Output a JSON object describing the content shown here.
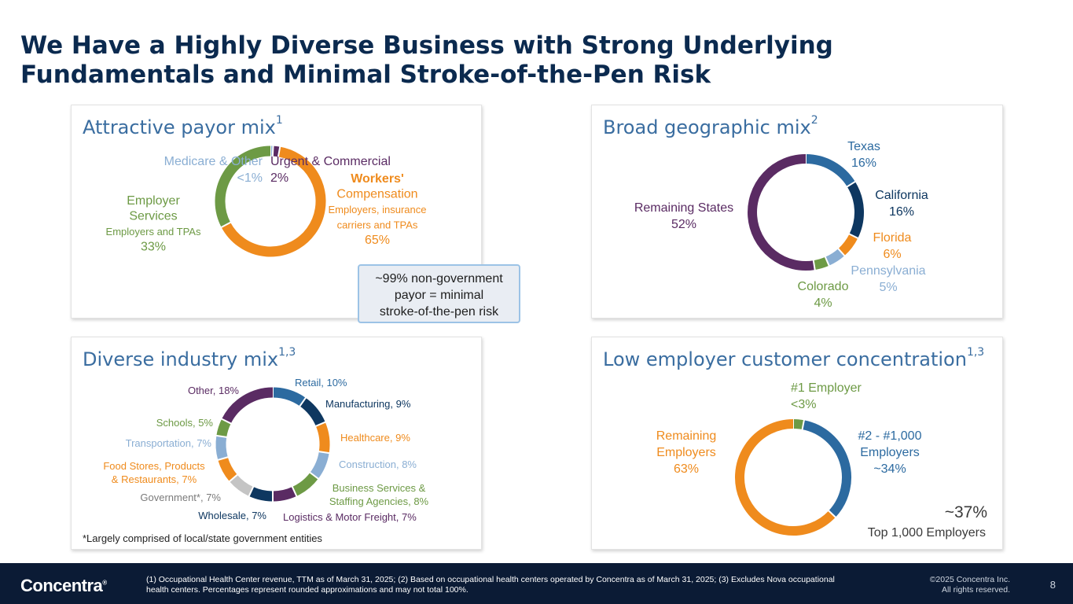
{
  "title": "We Have a Highly Diverse Business with Strong Underlying Fundamentals and Minimal Stroke-of-the-Pen Risk",
  "panels": {
    "payor": {
      "title": "Attractive payor mix",
      "sup": "1"
    },
    "geo": {
      "title": "Broad geographic mix",
      "sup": "2"
    },
    "industry": {
      "title": "Diverse industry mix",
      "sup": "1,3"
    },
    "employer": {
      "title": "Low employer customer concentration",
      "sup": "1,3"
    }
  },
  "callout": {
    "lines": [
      "~99% non-government",
      "payor = minimal",
      "stroke-of-the-pen risk"
    ]
  },
  "industry_footnote": "*Largely comprised of local/state government entities",
  "employer_summary": {
    "value": "~37%",
    "label": "Top 1,000 Employers"
  },
  "colors": {
    "navy": "#0b2a4f",
    "blue": "#2c6aa0",
    "dark_navy": "#0e3760",
    "orange": "#ef8b1d",
    "green": "#6d9a45",
    "light_blue": "#8aaed3",
    "purple": "#5a2b63",
    "gray": "#c4c4c4",
    "footer": "#0b1b35"
  },
  "chart_data": [
    {
      "type": "pie",
      "name": "payor",
      "slices": [
        {
          "label": "Medicare & Other",
          "value": 0.8,
          "display": "<1%",
          "color": "#8aaed3"
        },
        {
          "label": "Urgent & Commercial",
          "value": 2,
          "display": "2%",
          "color": "#5a2b63"
        },
        {
          "label": "Workers' Compensation",
          "sublabel": "Employers, insurance carriers and TPAs",
          "value": 65,
          "display": "65%",
          "color": "#ef8b1d"
        },
        {
          "label": "Employer Services",
          "sublabel": "Employers and TPAs",
          "value": 33,
          "display": "33%",
          "color": "#6d9a45"
        }
      ]
    },
    {
      "type": "pie",
      "name": "geography",
      "slices": [
        {
          "label": "Texas",
          "value": 16,
          "display": "16%",
          "color": "#2c6aa0"
        },
        {
          "label": "California",
          "value": 16,
          "display": "16%",
          "color": "#0e3760"
        },
        {
          "label": "Florida",
          "value": 6,
          "display": "6%",
          "color": "#ef8b1d"
        },
        {
          "label": "Pennsylvania",
          "value": 5,
          "display": "5%",
          "color": "#8aaed3"
        },
        {
          "label": "Colorado",
          "value": 4,
          "display": "4%",
          "color": "#6d9a45"
        },
        {
          "label": "Remaining States",
          "value": 52,
          "display": "52%",
          "color": "#5a2b63"
        }
      ]
    },
    {
      "type": "pie",
      "name": "industry",
      "slices": [
        {
          "label": "Retail, 10%",
          "value": 10,
          "color": "#2c6aa0"
        },
        {
          "label": "Manufacturing, 9%",
          "value": 9,
          "color": "#0e3760"
        },
        {
          "label": "Healthcare, 9%",
          "value": 9,
          "color": "#ef8b1d"
        },
        {
          "label": "Construction, 8%",
          "value": 8,
          "color": "#8aaed3"
        },
        {
          "label": "Business Services & Staffing Agencies, 8%",
          "lines": [
            "Business Services &",
            "Staffing Agencies, 8%"
          ],
          "value": 8,
          "color": "#6d9a45"
        },
        {
          "label": "Logistics & Motor Freight, 7%",
          "value": 7,
          "color": "#5a2b63"
        },
        {
          "label": "Wholesale, 7%",
          "value": 7,
          "color": "#0e3760"
        },
        {
          "label": "Government*, 7%",
          "value": 7,
          "color": "#c4c4c4"
        },
        {
          "label": "Food Stores, Products & Restaurants, 7%",
          "lines": [
            "Food Stores, Products",
            "& Restaurants, 7%"
          ],
          "value": 7,
          "color": "#ef8b1d"
        },
        {
          "label": "Transportation, 7%",
          "value": 7,
          "color": "#8aaed3"
        },
        {
          "label": "Schools, 5%",
          "value": 5,
          "color": "#6d9a45"
        },
        {
          "label": "Other, 18%",
          "value": 18,
          "color": "#5a2b63"
        }
      ]
    },
    {
      "type": "pie",
      "name": "employer",
      "slices": [
        {
          "label": "#1 Employer",
          "value": 3,
          "display": "<3%",
          "color": "#6d9a45"
        },
        {
          "label": "#2 - #1,000 Employers",
          "lines": [
            "#2 - #1,000",
            "Employers"
          ],
          "value": 34,
          "display": "~34%",
          "color": "#2c6aa0"
        },
        {
          "label": "Remaining Employers",
          "lines": [
            "Remaining",
            "Employers"
          ],
          "value": 63,
          "display": "63%",
          "color": "#ef8b1d"
        }
      ]
    }
  ],
  "footer": {
    "logo": "Concentra",
    "logo_mark": "®",
    "note_lines": [
      "(1) Occupational Health Center revenue, TTM as of March 31, 2025; (2) Based on occupational health centers operated by Concentra as of March 31, 2025; (3) Excludes Nova occupational",
      "health centers. Percentages represent rounded approximations and may not total 100%."
    ],
    "copyright_lines": [
      "©2025 Concentra Inc.",
      "All rights reserved."
    ],
    "page": "8"
  }
}
